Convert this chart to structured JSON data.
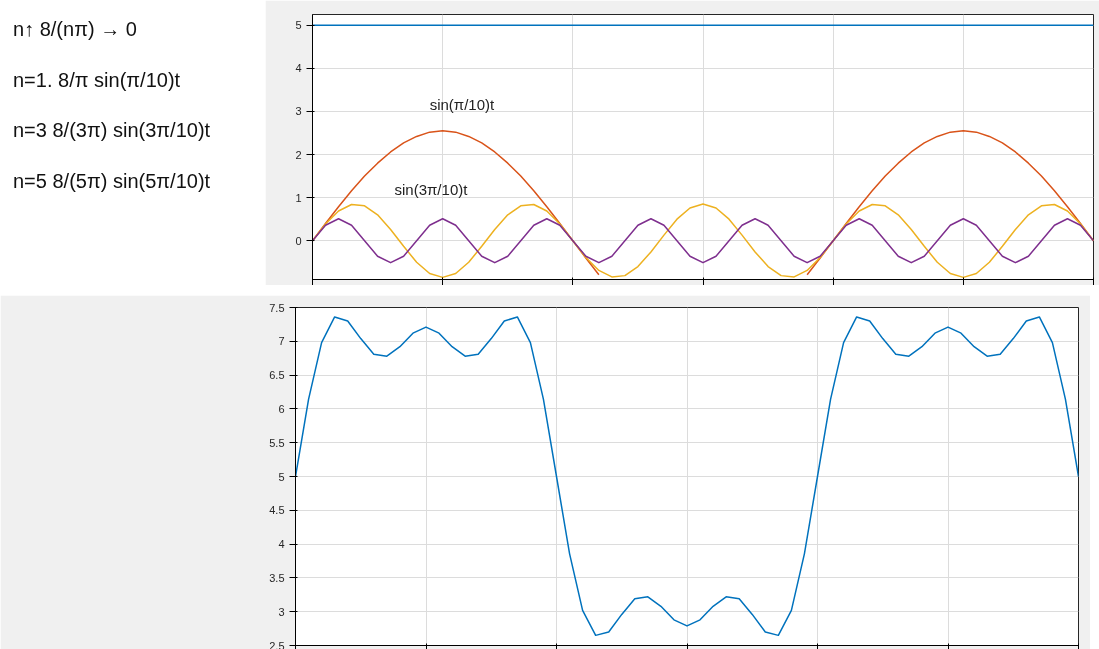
{
  "chart_data": [
    {
      "type": "line",
      "ylim": [
        -0.9,
        5.25
      ],
      "yticks": [
        0,
        1,
        2,
        3,
        4,
        5
      ],
      "grid": true,
      "categories": [
        null,
        null,
        null,
        null,
        null,
        null,
        null,
        null,
        null,
        null,
        null,
        null,
        null,
        null,
        null,
        null,
        null,
        null,
        null,
        null,
        null,
        null,
        null,
        null,
        null,
        null,
        null,
        null,
        null,
        null,
        null,
        null,
        null,
        null,
        null,
        null,
        null,
        null,
        null,
        null,
        null,
        null,
        null,
        null,
        null,
        null,
        null,
        null,
        null,
        null,
        null,
        null,
        null,
        null,
        null,
        null,
        null,
        null,
        null,
        null,
        null
      ],
      "annotations": [
        "n↑  8/(nπ) → 0",
        "n=1.  8/π sin(π/10)t",
        "n=3  8/(3π) sin(3π/10)t",
        "n=5  8/(5π) sin(5π/10)t",
        "sin(π/10)t",
        "sin(3π/10)t"
      ],
      "series": [
        {
          "color": "#0072bd",
          "values": [
            5,
            5,
            5,
            5,
            5,
            5,
            5,
            5,
            5,
            5,
            5,
            5,
            5,
            5,
            5,
            5,
            5,
            5,
            5,
            5,
            5,
            5,
            5,
            5,
            5,
            5,
            5,
            5,
            5,
            5,
            5,
            5,
            5,
            5,
            5,
            5,
            5,
            5,
            5,
            5,
            5,
            5,
            5,
            5,
            5,
            5,
            5,
            5,
            5,
            5,
            5,
            5,
            5,
            5,
            5,
            5,
            5,
            5,
            5,
            5,
            5
          ]
        },
        {
          "color": "#d95319",
          "values": [
            0,
            0.4,
            0.79,
            1.16,
            1.5,
            1.8,
            2.06,
            2.27,
            2.42,
            2.52,
            2.55,
            2.52,
            2.42,
            2.27,
            2.06,
            1.8,
            1.5,
            1.16,
            0.79,
            0.4,
            0,
            -0.4,
            -0.79,
            null,
            null,
            null,
            null,
            null,
            null,
            null,
            null,
            null,
            null,
            null,
            null,
            null,
            null,
            null,
            -0.79,
            -0.4,
            0,
            0.4,
            0.79,
            1.16,
            1.5,
            1.8,
            2.06,
            2.27,
            2.42,
            2.52,
            2.55,
            2.52,
            2.42,
            2.27,
            2.06,
            1.8,
            1.5,
            1.16,
            0.79,
            0.4,
            0
          ]
        },
        {
          "color": "#edb120",
          "values": [
            0,
            0.39,
            0.69,
            0.84,
            0.81,
            0.6,
            0.26,
            -0.13,
            -0.5,
            -0.76,
            -0.85,
            -0.76,
            -0.5,
            -0.13,
            0.26,
            0.6,
            0.81,
            0.84,
            0.69,
            0.39,
            0,
            -0.39,
            -0.69,
            -0.84,
            -0.81,
            -0.6,
            -0.26,
            0.13,
            0.5,
            0.76,
            0.85,
            0.76,
            0.5,
            0.13,
            -0.26,
            -0.6,
            -0.81,
            -0.84,
            -0.69,
            -0.39,
            0,
            0.39,
            0.69,
            0.84,
            0.81,
            0.6,
            0.26,
            -0.13,
            -0.5,
            -0.76,
            -0.85,
            -0.76,
            -0.5,
            -0.13,
            0.26,
            0.6,
            0.81,
            0.84,
            0.69,
            0.39,
            0
          ]
        },
        {
          "color": "#7e2f8e",
          "values": [
            0,
            0.36,
            0.51,
            0.36,
            0,
            -0.36,
            -0.51,
            -0.36,
            0,
            0.36,
            0.51,
            0.36,
            0,
            -0.36,
            -0.51,
            -0.36,
            0,
            0.36,
            0.51,
            0.36,
            0,
            -0.36,
            -0.51,
            -0.36,
            0,
            0.36,
            0.51,
            0.36,
            0,
            -0.36,
            -0.51,
            -0.36,
            0,
            0.36,
            0.51,
            0.36,
            0,
            -0.36,
            -0.51,
            -0.36,
            0,
            0.36,
            0.51,
            0.36,
            0,
            -0.36,
            -0.51,
            -0.36,
            0,
            0.36,
            0.51,
            0.36,
            0,
            -0.36,
            -0.51,
            -0.36,
            0,
            0.36,
            0.51,
            0.36,
            0
          ]
        }
      ]
    },
    {
      "type": "line",
      "ylim": [
        2.5,
        7.5
      ],
      "yticks": [
        2.5,
        3,
        3.5,
        4,
        4.5,
        5,
        5.5,
        6,
        6.5,
        7,
        7.5
      ],
      "grid": true,
      "categories": [
        null,
        null,
        null,
        null,
        null,
        null,
        null,
        null,
        null,
        null,
        null,
        null,
        null,
        null,
        null,
        null,
        null,
        null,
        null,
        null,
        null,
        null,
        null,
        null,
        null,
        null,
        null,
        null,
        null,
        null,
        null,
        null,
        null,
        null,
        null,
        null,
        null,
        null,
        null,
        null,
        null,
        null,
        null,
        null,
        null,
        null,
        null,
        null,
        null,
        null,
        null,
        null,
        null,
        null,
        null,
        null,
        null,
        null,
        null,
        null,
        null
      ],
      "series": [
        {
          "color": "#0072bd",
          "values": [
            5,
            6.14,
            6.98,
            7.36,
            7.3,
            7.04,
            6.81,
            6.78,
            6.92,
            7.12,
            7.21,
            7.12,
            6.92,
            6.78,
            6.81,
            7.04,
            7.3,
            7.36,
            6.98,
            6.14,
            5,
            3.86,
            3.02,
            2.65,
            2.7,
            2.96,
            3.19,
            3.22,
            3.08,
            2.88,
            2.79,
            2.88,
            3.08,
            3.22,
            3.19,
            2.96,
            2.7,
            2.65,
            3.02,
            3.86,
            5,
            6.14,
            6.98,
            7.36,
            7.3,
            7.04,
            6.81,
            6.78,
            6.92,
            7.12,
            7.21,
            7.12,
            6.92,
            6.78,
            6.81,
            7.04,
            7.3,
            7.36,
            6.98,
            6.14,
            5
          ]
        }
      ]
    }
  ]
}
